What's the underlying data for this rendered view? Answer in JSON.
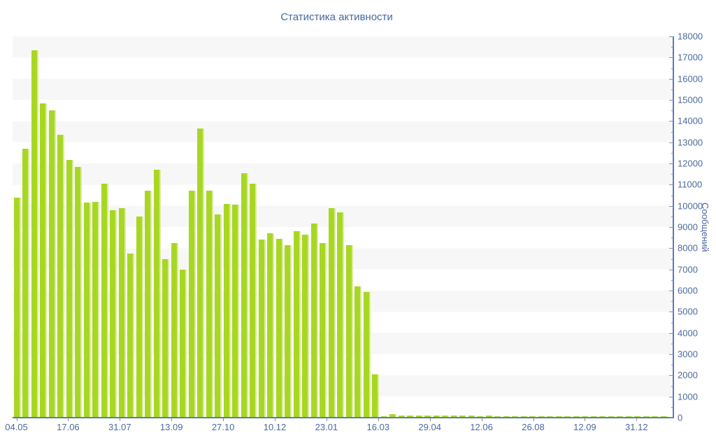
{
  "chart_data": {
    "type": "bar",
    "title": "Статистика активности",
    "ylabel": "Сообщений",
    "xlabel": "",
    "ylim": [
      0,
      18000
    ],
    "y_tick_step": 1000,
    "y_minor_tick_step": 500,
    "y_axis_side": "right",
    "grid": "alternating horizontal 1000-unit bands, top band (17000-18000) shaded",
    "legend_position": "none",
    "x_tick_labels": [
      "04.05",
      "17.06",
      "31.07",
      "13.09",
      "27.10",
      "10.12",
      "23.01",
      "16.03",
      "29.04",
      "12.06",
      "26.08",
      "12.09",
      "31.12"
    ],
    "x_ticks_every_n_bars": 6,
    "values": [
      10400,
      12700,
      17350,
      14850,
      14500,
      13350,
      12150,
      11850,
      10150,
      10200,
      11050,
      9800,
      9900,
      7750,
      9500,
      10700,
      11700,
      7500,
      8250,
      7000,
      10700,
      13650,
      10700,
      9600,
      10100,
      10050,
      11550,
      11050,
      8400,
      8700,
      8450,
      8150,
      8800,
      8650,
      9150,
      8250,
      9900,
      9700,
      8150,
      6200,
      5950,
      2050,
      50,
      180,
      110,
      85,
      105,
      95,
      100,
      90,
      95,
      85,
      90,
      80,
      85,
      75,
      80,
      70,
      75,
      70,
      65,
      70,
      65,
      60,
      65,
      60,
      65,
      60,
      55,
      60,
      55,
      60,
      55,
      50,
      55
    ],
    "colors": {
      "bar": "#a8d723",
      "bar_highlight": "#d9ec99",
      "axis": "#5b7ab8",
      "text": "#4a6b9e",
      "title_text": "#4767a0",
      "band": "#f7f7f8",
      "background": "#ffffff",
      "x_tick": "#8f8f8f"
    }
  }
}
